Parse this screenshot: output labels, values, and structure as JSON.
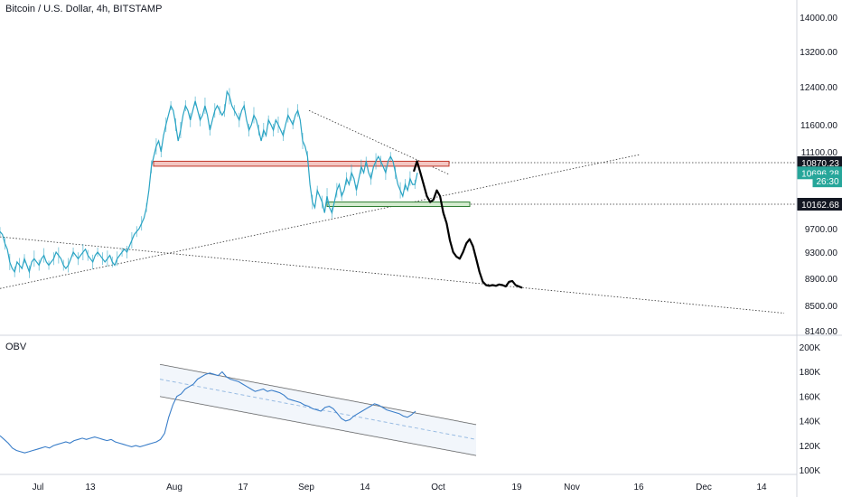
{
  "header": {
    "title": "Bitcoin / U.S. Dollar, 4h, BITSTAMP"
  },
  "obv": {
    "label": "OBV"
  },
  "colors": {
    "price_line": "#2aa4c4",
    "obv_line": "#3a7ec9",
    "projection": "#000000",
    "resistance_fill": "#f3c6c2",
    "resistance_stroke": "#c0392b",
    "support_fill": "#d5ecd0",
    "support_stroke": "#2e7d32",
    "grid_text": "#131722"
  },
  "chart_data": [
    {
      "type": "line",
      "title": "Bitcoin / U.S. Dollar, 4h, BITSTAMP",
      "x_ticks": [
        "Jul",
        "13",
        "Aug",
        "17",
        "Sep",
        "14",
        "Oct",
        "19",
        "Nov",
        "16",
        "Dec",
        "14"
      ],
      "y_ticks": [
        "14000.00",
        "13200.00",
        "12400.00",
        "11600.00",
        "11100.00",
        "9700.00",
        "9300.00",
        "8900.00",
        "8500.00",
        "8140.00"
      ],
      "ylim": [
        8140,
        14000
      ],
      "price_labels": [
        {
          "text": "10870.23",
          "value": 10870.23,
          "style": "dark"
        },
        {
          "text": "10696.28",
          "value": 10696.28,
          "style": "teal"
        },
        {
          "text": "26:30",
          "value": 10560,
          "style": "teal"
        },
        {
          "text": "10162.68",
          "value": 10162.68,
          "style": "dark"
        }
      ],
      "series": [
        {
          "values": [
            9650,
            9600,
            9450,
            9350,
            9150,
            9050,
            9000,
            9150,
            9100,
            9050,
            9200,
            9100,
            9000,
            9150,
            9200,
            9150,
            9100,
            9200,
            9250,
            9150,
            9100,
            9150,
            9200,
            9300,
            9250,
            9200,
            9100,
            9050,
            9100,
            9200,
            9300,
            9250,
            9200,
            9250,
            9300,
            9350,
            9250,
            9200,
            9150,
            9250,
            9300,
            9250,
            9200,
            9150,
            9200,
            9250,
            9150,
            9100,
            9200,
            9250,
            9300,
            9350,
            9300,
            9400,
            9500,
            9600,
            9650,
            9700,
            9800,
            9900,
            10100,
            10400,
            10800,
            11000,
            11200,
            11300,
            11100,
            11400,
            11600,
            11800,
            12000,
            11900,
            11600,
            11300,
            11500,
            11800,
            12000,
            11900,
            11700,
            11900,
            12100,
            11900,
            11700,
            11800,
            12000,
            11800,
            11500,
            11700,
            11900,
            12000,
            11900,
            11800,
            11900,
            12300,
            12200,
            12000,
            11900,
            11800,
            11700,
            11900,
            12000,
            11700,
            11500,
            11600,
            11800,
            11700,
            11500,
            11300,
            11500,
            11400,
            11700,
            11600,
            11500,
            11700,
            11600,
            11500,
            11400,
            11600,
            11800,
            11700,
            11600,
            11800,
            11900,
            11700,
            11300,
            11200,
            11000,
            10500,
            10200,
            10100,
            10400,
            10300,
            10200,
            10000,
            10300,
            10100,
            10000,
            10200,
            10400,
            10500,
            10300,
            10400,
            10600,
            10500,
            10700,
            10600,
            10400,
            10600,
            10800,
            10700,
            10900,
            10700,
            10600,
            10800,
            10900,
            11000,
            10900,
            10800,
            10700,
            10900,
            11000,
            10900,
            10700,
            10500,
            10400,
            10300,
            10500,
            10400,
            10600,
            10500,
            10500,
            10700
          ]
        },
        {
          "values": [
            10720,
            10900,
            10700,
            10500,
            10300,
            10200,
            10240,
            10400,
            10300,
            10000,
            9800,
            9500,
            9300,
            9230,
            9200,
            9300,
            9450,
            9520,
            9400,
            9200,
            9000,
            8850,
            8800,
            8790,
            8800,
            8790,
            8810,
            8800,
            8780,
            8850,
            8860,
            8800,
            8780,
            8760
          ]
        }
      ],
      "trendlines": [
        {
          "from": [
            0,
            9560
          ],
          "to": [
            232,
            8390
          ]
        },
        {
          "from": [
            0,
            8750
          ],
          "to": [
            190,
            11040
          ]
        },
        {
          "from": [
            79,
            11900
          ],
          "to": [
            116,
            10670
          ]
        }
      ],
      "horizontal_levels": [
        10870.23,
        10162.68
      ],
      "zones": [
        {
          "from": 40,
          "to": 116,
          "low": 10810,
          "high": 10900,
          "kind": "resistance"
        },
        {
          "from": 85,
          "to": 116,
          "low": 10120,
          "high": 10200,
          "kind": "support"
        }
      ]
    },
    {
      "type": "line",
      "title": "OBV",
      "y_ticks": [
        "200K",
        "180K",
        "160K",
        "140K",
        "120K",
        "100K"
      ],
      "ylim": [
        100000,
        200000
      ],
      "series": [
        {
          "values": [
            130000,
            127000,
            124000,
            120000,
            118000,
            117000,
            116000,
            117000,
            118000,
            119000,
            120000,
            121000,
            120000,
            122000,
            123000,
            124000,
            125000,
            124000,
            126000,
            127000,
            128000,
            127000,
            128000,
            129000,
            128000,
            127000,
            126000,
            127000,
            125000,
            124000,
            123000,
            122000,
            121000,
            122000,
            121000,
            122000,
            123000,
            124000,
            125000,
            127000,
            132000,
            145000,
            155000,
            162000,
            164000,
            168000,
            170000,
            172000,
            176000,
            178000,
            180000,
            181000,
            180000,
            179000,
            182000,
            178000,
            176000,
            175000,
            174000,
            172000,
            170000,
            168000,
            166000,
            167000,
            168000,
            166000,
            167000,
            166000,
            165000,
            163000,
            160000,
            159000,
            158000,
            157000,
            155000,
            154000,
            152000,
            151000,
            150000,
            153000,
            154000,
            152000,
            148000,
            144000,
            142000,
            143000,
            146000,
            148000,
            150000,
            152000,
            154000,
            156000,
            155000,
            153000,
            151000,
            150000,
            149000,
            148000,
            146000,
            145000,
            147000,
            150000
          ]
        }
      ],
      "trendlines": [
        {
          "from": [
            47,
            188000
          ],
          "to": [
            125,
            139000
          ]
        },
        {
          "from": [
            47,
            162000
          ],
          "to": [
            125,
            114000
          ]
        },
        {
          "from": [
            47,
            176000
          ],
          "to": [
            125,
            127000
          ]
        }
      ]
    }
  ]
}
